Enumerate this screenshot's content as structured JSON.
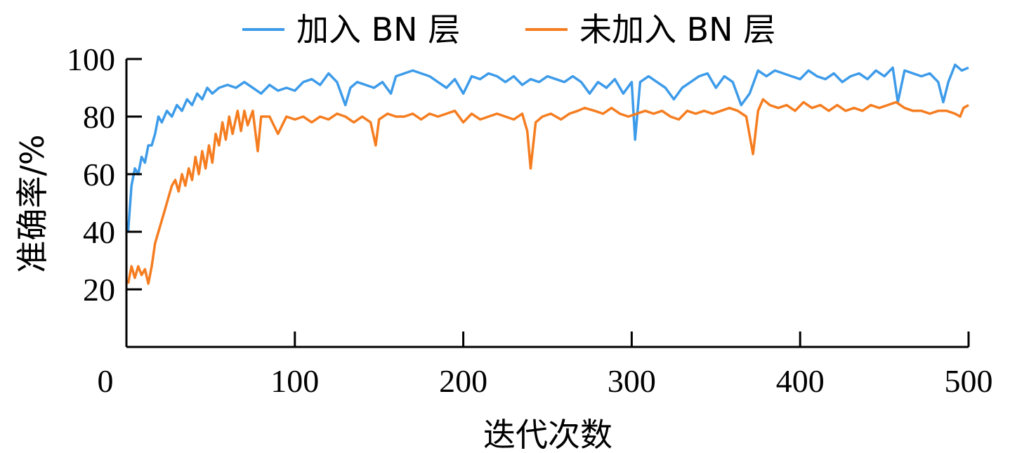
{
  "chart_data": {
    "type": "line",
    "xlabel": "迭代次数",
    "ylabel": "准确率/%",
    "xlim": [
      0,
      500
    ],
    "ylim": [
      0,
      100
    ],
    "xticks": [
      0,
      100,
      200,
      300,
      400,
      500
    ],
    "yticks": [
      20,
      40,
      60,
      80,
      100
    ],
    "xtick_labels": [
      "0",
      "100",
      "200",
      "300",
      "400",
      "500"
    ],
    "ytick_labels": [
      "20",
      "40",
      "60",
      "80",
      "100"
    ],
    "grid": false,
    "legend_position": "top",
    "series": [
      {
        "name": "加入 BN 层",
        "color": "#3d9be9",
        "points": [
          [
            1,
            40
          ],
          [
            3,
            56
          ],
          [
            5,
            62
          ],
          [
            7,
            60
          ],
          [
            9,
            66
          ],
          [
            11,
            64
          ],
          [
            13,
            70
          ],
          [
            15,
            70
          ],
          [
            17,
            74
          ],
          [
            19,
            80
          ],
          [
            21,
            78
          ],
          [
            24,
            82
          ],
          [
            27,
            80
          ],
          [
            30,
            84
          ],
          [
            33,
            82
          ],
          [
            36,
            86
          ],
          [
            39,
            84
          ],
          [
            42,
            88
          ],
          [
            45,
            86
          ],
          [
            48,
            90
          ],
          [
            51,
            88
          ],
          [
            55,
            90
          ],
          [
            60,
            91
          ],
          [
            65,
            90
          ],
          [
            70,
            92
          ],
          [
            75,
            90
          ],
          [
            80,
            88
          ],
          [
            85,
            91
          ],
          [
            90,
            89
          ],
          [
            95,
            90
          ],
          [
            100,
            89
          ],
          [
            105,
            92
          ],
          [
            110,
            93
          ],
          [
            115,
            91
          ],
          [
            120,
            95
          ],
          [
            125,
            92
          ],
          [
            130,
            84
          ],
          [
            133,
            90
          ],
          [
            137,
            92
          ],
          [
            142,
            91
          ],
          [
            147,
            90
          ],
          [
            152,
            92
          ],
          [
            157,
            88
          ],
          [
            160,
            94
          ],
          [
            165,
            95
          ],
          [
            170,
            96
          ],
          [
            175,
            95
          ],
          [
            180,
            94
          ],
          [
            185,
            92
          ],
          [
            190,
            90
          ],
          [
            195,
            93
          ],
          [
            200,
            88
          ],
          [
            205,
            94
          ],
          [
            210,
            93
          ],
          [
            215,
            95
          ],
          [
            220,
            94
          ],
          [
            225,
            92
          ],
          [
            230,
            94
          ],
          [
            235,
            91
          ],
          [
            240,
            93
          ],
          [
            245,
            92
          ],
          [
            250,
            94
          ],
          [
            255,
            93
          ],
          [
            260,
            92
          ],
          [
            265,
            94
          ],
          [
            270,
            92
          ],
          [
            275,
            88
          ],
          [
            280,
            92
          ],
          [
            285,
            90
          ],
          [
            290,
            93
          ],
          [
            295,
            88
          ],
          [
            300,
            92
          ],
          [
            302,
            72
          ],
          [
            305,
            92
          ],
          [
            310,
            94
          ],
          [
            315,
            92
          ],
          [
            320,
            90
          ],
          [
            325,
            86
          ],
          [
            330,
            90
          ],
          [
            335,
            92
          ],
          [
            340,
            94
          ],
          [
            345,
            95
          ],
          [
            350,
            90
          ],
          [
            355,
            94
          ],
          [
            360,
            92
          ],
          [
            365,
            84
          ],
          [
            370,
            88
          ],
          [
            375,
            96
          ],
          [
            380,
            94
          ],
          [
            385,
            96
          ],
          [
            390,
            95
          ],
          [
            395,
            94
          ],
          [
            400,
            93
          ],
          [
            405,
            96
          ],
          [
            410,
            94
          ],
          [
            415,
            93
          ],
          [
            420,
            95
          ],
          [
            425,
            92
          ],
          [
            430,
            94
          ],
          [
            435,
            95
          ],
          [
            440,
            93
          ],
          [
            445,
            96
          ],
          [
            450,
            94
          ],
          [
            455,
            97
          ],
          [
            458,
            85
          ],
          [
            462,
            96
          ],
          [
            467,
            95
          ],
          [
            472,
            94
          ],
          [
            477,
            95
          ],
          [
            482,
            92
          ],
          [
            485,
            85
          ],
          [
            488,
            92
          ],
          [
            492,
            98
          ],
          [
            496,
            96
          ],
          [
            500,
            97
          ]
        ]
      },
      {
        "name": "未加入 BN 层",
        "color": "#f57d20",
        "points": [
          [
            1,
            22
          ],
          [
            3,
            28
          ],
          [
            5,
            24
          ],
          [
            7,
            28
          ],
          [
            9,
            25
          ],
          [
            11,
            27
          ],
          [
            13,
            22
          ],
          [
            15,
            28
          ],
          [
            17,
            36
          ],
          [
            19,
            40
          ],
          [
            21,
            44
          ],
          [
            23,
            48
          ],
          [
            25,
            52
          ],
          [
            27,
            56
          ],
          [
            29,
            58
          ],
          [
            31,
            54
          ],
          [
            33,
            60
          ],
          [
            35,
            56
          ],
          [
            37,
            62
          ],
          [
            39,
            58
          ],
          [
            41,
            66
          ],
          [
            43,
            60
          ],
          [
            45,
            68
          ],
          [
            47,
            62
          ],
          [
            49,
            70
          ],
          [
            51,
            64
          ],
          [
            53,
            74
          ],
          [
            55,
            70
          ],
          [
            57,
            78
          ],
          [
            59,
            72
          ],
          [
            61,
            80
          ],
          [
            63,
            74
          ],
          [
            66,
            82
          ],
          [
            68,
            75
          ],
          [
            70,
            82
          ],
          [
            72,
            77
          ],
          [
            75,
            82
          ],
          [
            78,
            68
          ],
          [
            80,
            80
          ],
          [
            85,
            80
          ],
          [
            90,
            74
          ],
          [
            95,
            80
          ],
          [
            100,
            79
          ],
          [
            105,
            80
          ],
          [
            110,
            78
          ],
          [
            115,
            80
          ],
          [
            120,
            79
          ],
          [
            125,
            81
          ],
          [
            130,
            80
          ],
          [
            135,
            78
          ],
          [
            140,
            80
          ],
          [
            145,
            78
          ],
          [
            148,
            70
          ],
          [
            150,
            79
          ],
          [
            155,
            81
          ],
          [
            160,
            80
          ],
          [
            165,
            80
          ],
          [
            170,
            81
          ],
          [
            175,
            79
          ],
          [
            180,
            81
          ],
          [
            185,
            80
          ],
          [
            190,
            81
          ],
          [
            195,
            82
          ],
          [
            200,
            78
          ],
          [
            205,
            81
          ],
          [
            210,
            79
          ],
          [
            215,
            80
          ],
          [
            220,
            81
          ],
          [
            225,
            80
          ],
          [
            230,
            79
          ],
          [
            235,
            81
          ],
          [
            238,
            75
          ],
          [
            240,
            62
          ],
          [
            243,
            78
          ],
          [
            247,
            80
          ],
          [
            252,
            81
          ],
          [
            258,
            79
          ],
          [
            263,
            81
          ],
          [
            268,
            82
          ],
          [
            272,
            83
          ],
          [
            278,
            82
          ],
          [
            283,
            81
          ],
          [
            288,
            83
          ],
          [
            293,
            81
          ],
          [
            298,
            80
          ],
          [
            303,
            81
          ],
          [
            308,
            82
          ],
          [
            313,
            81
          ],
          [
            318,
            82
          ],
          [
            323,
            80
          ],
          [
            328,
            79
          ],
          [
            333,
            82
          ],
          [
            338,
            81
          ],
          [
            343,
            82
          ],
          [
            348,
            81
          ],
          [
            353,
            82
          ],
          [
            358,
            83
          ],
          [
            363,
            82
          ],
          [
            368,
            80
          ],
          [
            372,
            67
          ],
          [
            375,
            82
          ],
          [
            378,
            86
          ],
          [
            382,
            84
          ],
          [
            387,
            83
          ],
          [
            392,
            84
          ],
          [
            397,
            82
          ],
          [
            402,
            85
          ],
          [
            407,
            83
          ],
          [
            412,
            84
          ],
          [
            417,
            82
          ],
          [
            422,
            84
          ],
          [
            427,
            82
          ],
          [
            432,
            83
          ],
          [
            437,
            82
          ],
          [
            442,
            84
          ],
          [
            447,
            83
          ],
          [
            452,
            84
          ],
          [
            457,
            85
          ],
          [
            462,
            83
          ],
          [
            467,
            82
          ],
          [
            472,
            82
          ],
          [
            477,
            81
          ],
          [
            482,
            82
          ],
          [
            487,
            82
          ],
          [
            492,
            81
          ],
          [
            495,
            80
          ],
          [
            497,
            83
          ],
          [
            500,
            84
          ]
        ]
      }
    ]
  }
}
